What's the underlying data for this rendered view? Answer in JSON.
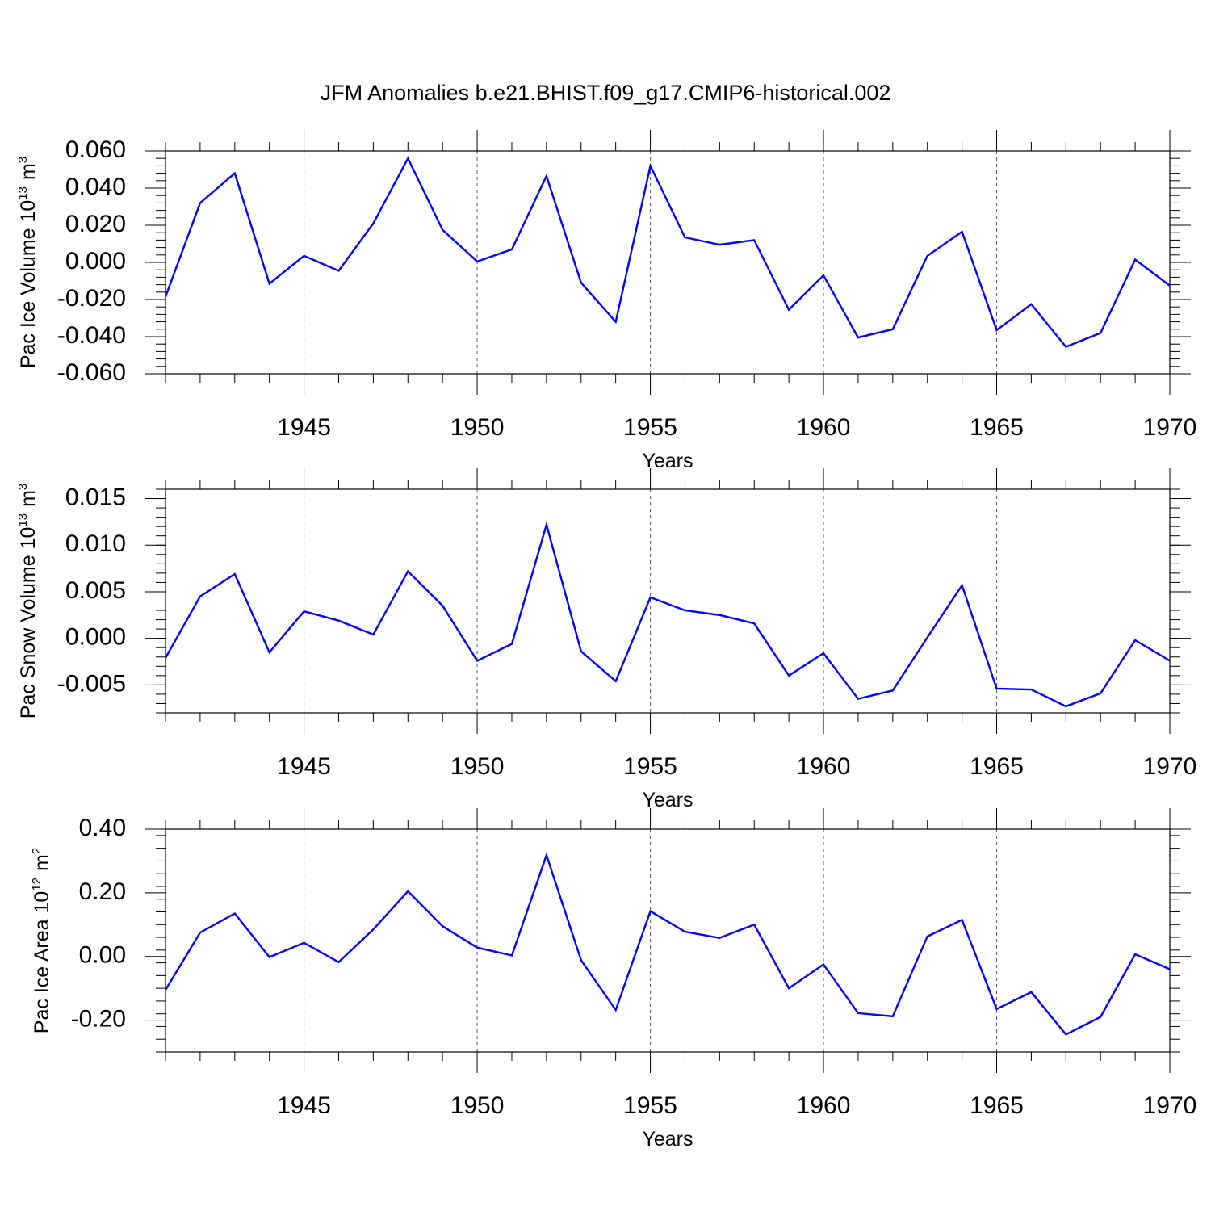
{
  "title": "JFM Anomalies b.e21.BHIST.f09_g17.CMIP6-historical.002",
  "line_color": "#0000ff",
  "chart_data": [
    {
      "type": "line",
      "ylabel_main": "Pac Ice Volume 10",
      "ylabel_exp": "13",
      "ylabel_unit": "m",
      "ylabel_unit_exp": "3",
      "xlabel": "Years",
      "xlim": [
        1941,
        1970
      ],
      "ylim": [
        -0.06,
        0.06
      ],
      "yticks": [
        -0.06,
        -0.04,
        -0.02,
        0.0,
        0.02,
        0.04,
        0.06
      ],
      "ytick_labels": [
        "-0.060",
        "-0.040",
        "-0.020",
        "0.000",
        "0.020",
        "0.040",
        "0.060"
      ],
      "xticks": [
        1945,
        1950,
        1955,
        1960,
        1965,
        1970
      ],
      "xtick_labels": [
        "1945",
        "1950",
        "1955",
        "1960",
        "1965",
        "1970"
      ],
      "x": [
        1941,
        1942,
        1943,
        1944,
        1945,
        1946,
        1947,
        1948,
        1949,
        1950,
        1951,
        1952,
        1953,
        1954,
        1955,
        1956,
        1957,
        1958,
        1959,
        1960,
        1961,
        1962,
        1963,
        1964,
        1965,
        1966,
        1967,
        1968,
        1969,
        1970
      ],
      "values": [
        -0.0185,
        0.032,
        0.048,
        -0.0115,
        0.0035,
        -0.0045,
        0.021,
        0.056,
        0.0175,
        0.0005,
        0.007,
        0.0465,
        -0.011,
        -0.032,
        0.052,
        0.0135,
        0.0095,
        0.012,
        -0.0255,
        -0.007,
        -0.0405,
        -0.036,
        0.0035,
        0.0165,
        -0.0365,
        -0.0225,
        -0.0455,
        -0.038,
        0.0015,
        -0.0125
      ]
    },
    {
      "type": "line",
      "ylabel_main": "Pac Snow Volume 10",
      "ylabel_exp": "13",
      "ylabel_unit": "m",
      "ylabel_unit_exp": "3",
      "xlabel": "Years",
      "xlim": [
        1941,
        1970
      ],
      "ylim": [
        -0.008,
        0.016
      ],
      "yticks": [
        -0.005,
        0.0,
        0.005,
        0.01,
        0.015
      ],
      "ytick_labels": [
        "-0.005",
        "0.000",
        "0.005",
        "0.010",
        "0.015"
      ],
      "xticks": [
        1945,
        1950,
        1955,
        1960,
        1965,
        1970
      ],
      "xtick_labels": [
        "1945",
        "1950",
        "1955",
        "1960",
        "1965",
        "1970"
      ],
      "x": [
        1941,
        1942,
        1943,
        1944,
        1945,
        1946,
        1947,
        1948,
        1949,
        1950,
        1951,
        1952,
        1953,
        1954,
        1955,
        1956,
        1957,
        1958,
        1959,
        1960,
        1961,
        1962,
        1963,
        1964,
        1965,
        1966,
        1967,
        1968,
        1969,
        1970
      ],
      "values": [
        -0.0021,
        0.0045,
        0.0069,
        -0.0015,
        0.0029,
        0.0019,
        0.0004,
        0.0072,
        0.0035,
        -0.0024,
        -0.0006,
        0.0122,
        -0.0014,
        -0.0046,
        0.0044,
        0.003,
        0.0025,
        0.0016,
        -0.004,
        -0.0016,
        -0.0065,
        -0.0056,
        0.0001,
        0.0057,
        -0.0054,
        -0.0055,
        -0.0073,
        -0.0059,
        -0.0002,
        -0.0024
      ]
    },
    {
      "type": "line",
      "ylabel_main": "Pac Ice Area 10",
      "ylabel_exp": "12",
      "ylabel_unit": "m",
      "ylabel_unit_exp": "2",
      "xlabel": "Years",
      "xlim": [
        1941,
        1970
      ],
      "ylim": [
        -0.3,
        0.4
      ],
      "yticks": [
        -0.2,
        0.0,
        0.2,
        0.4
      ],
      "ytick_labels": [
        "-0.20",
        "0.00",
        "0.20",
        "0.40"
      ],
      "xticks": [
        1945,
        1950,
        1955,
        1960,
        1965,
        1970
      ],
      "xtick_labels": [
        "1945",
        "1950",
        "1955",
        "1960",
        "1965",
        "1970"
      ],
      "x": [
        1941,
        1942,
        1943,
        1944,
        1945,
        1946,
        1947,
        1948,
        1949,
        1950,
        1951,
        1952,
        1953,
        1954,
        1955,
        1956,
        1957,
        1958,
        1959,
        1960,
        1961,
        1962,
        1963,
        1964,
        1965,
        1966,
        1967,
        1968,
        1969,
        1970
      ],
      "values": [
        -0.105,
        0.075,
        0.135,
        -0.002,
        0.043,
        -0.018,
        0.085,
        0.205,
        0.095,
        0.028,
        0.003,
        0.318,
        -0.012,
        -0.168,
        0.142,
        0.078,
        0.058,
        0.1,
        -0.1,
        -0.025,
        -0.178,
        -0.188,
        0.063,
        0.115,
        -0.165,
        -0.112,
        -0.245,
        -0.19,
        0.007,
        -0.04
      ]
    }
  ]
}
